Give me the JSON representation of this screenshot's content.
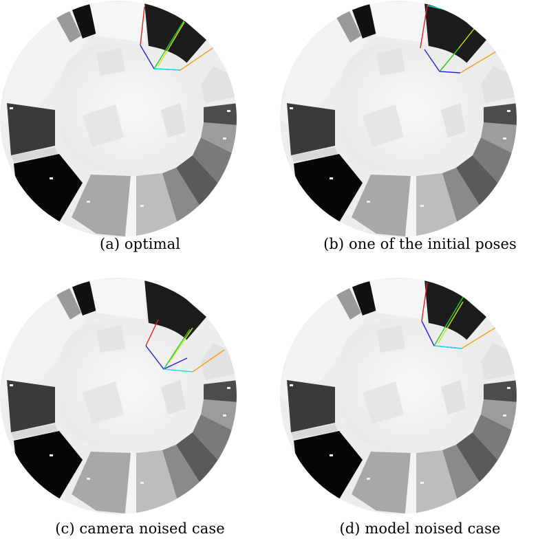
{
  "figure": {
    "panels": [
      {
        "id": "a",
        "caption": "(a) optimal",
        "variant": "optimal"
      },
      {
        "id": "b",
        "caption": "(b) one of the initial poses",
        "variant": "initial"
      },
      {
        "id": "c",
        "caption": "(c) camera noised case",
        "variant": "camera-noise"
      },
      {
        "id": "d",
        "caption": "(d) model noised case",
        "variant": "model-noise"
      }
    ]
  },
  "colors": {
    "axis_red": "#e02020",
    "axis_green": "#20d020",
    "axis_blue": "#2020e0",
    "axis_cyan": "#20e0e0",
    "axis_orange": "#f0a020",
    "axis_yellow": "#d8e020"
  }
}
